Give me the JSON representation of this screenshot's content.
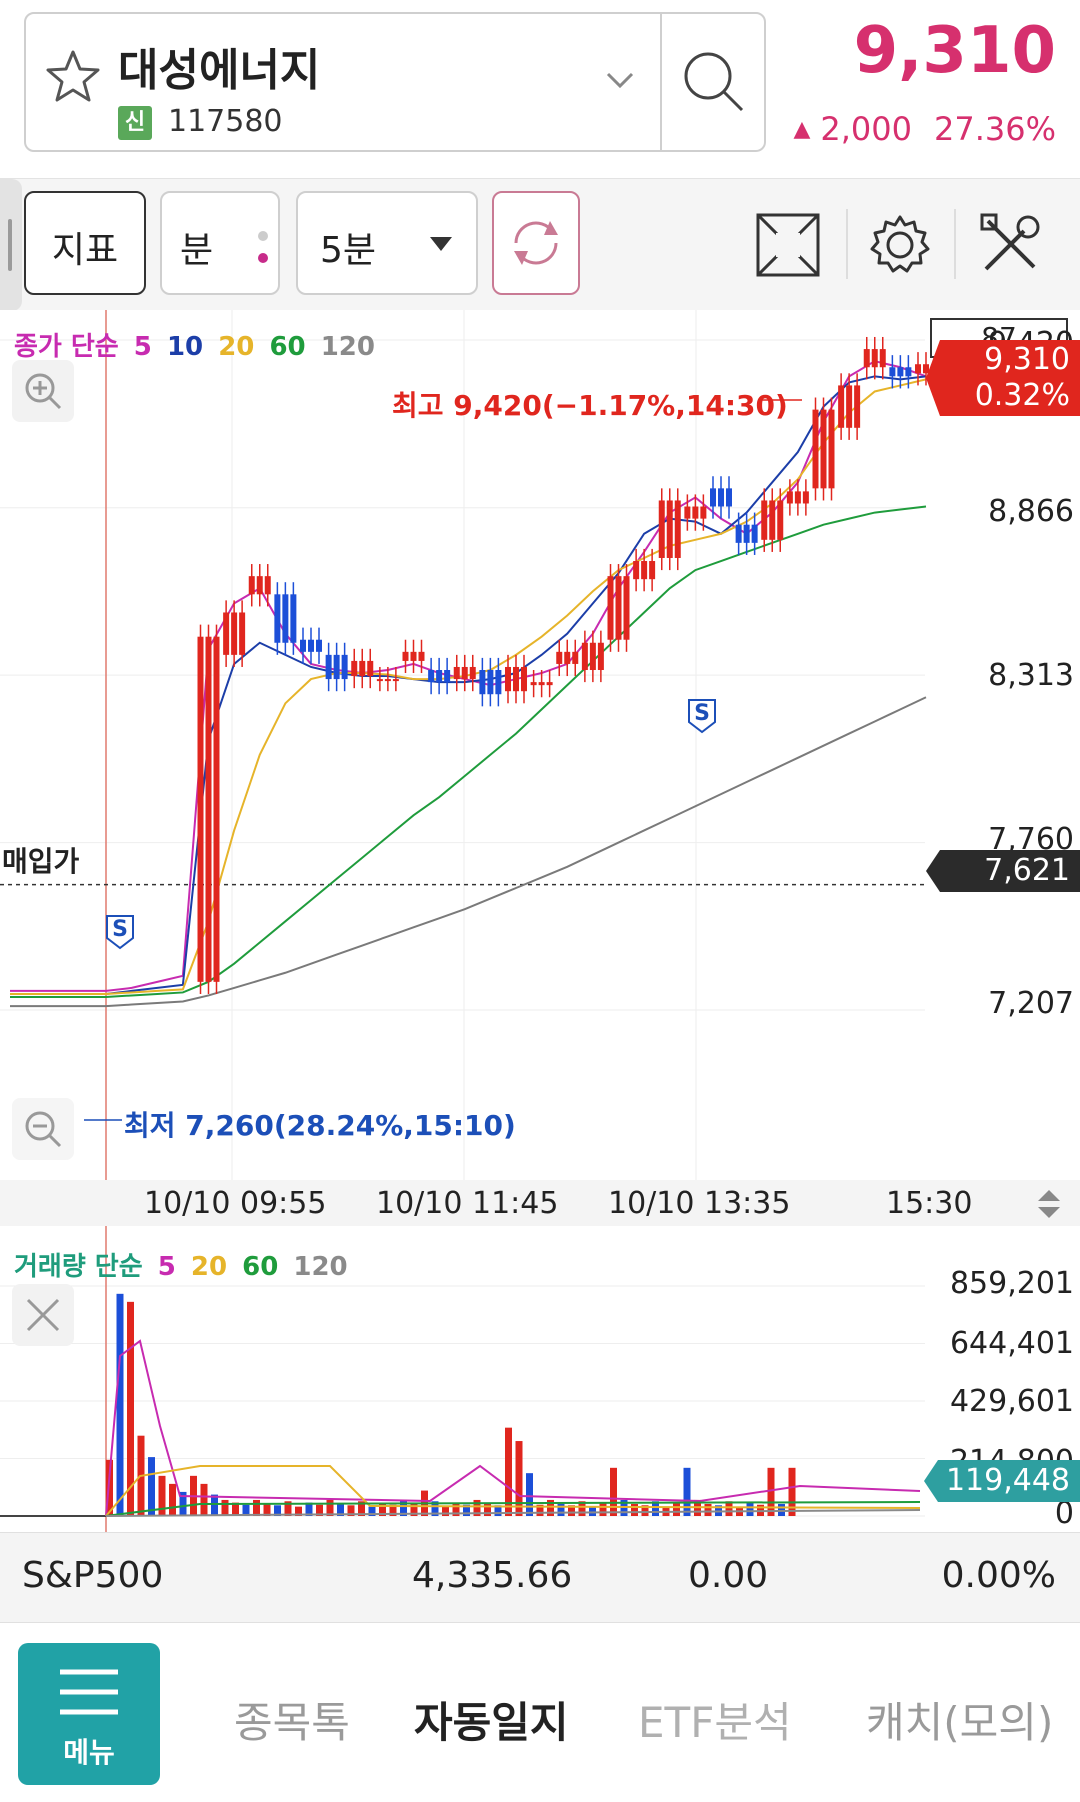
{
  "header": {
    "stock_name": "대성에너지",
    "badge": "신",
    "stock_code": "117580",
    "price": "9,310",
    "change_amount": "2,000",
    "change_percent": "27.36%",
    "price_color": "#d6306e"
  },
  "toolbar": {
    "indicator_label": "지표",
    "unit_label": "분",
    "interval_value": "5분",
    "icons": [
      "refresh-icon",
      "fullscreen-icon",
      "gear-icon",
      "tools-icon"
    ]
  },
  "chart": {
    "legend": {
      "title": "종가 단순",
      "periods": [
        "5",
        "10",
        "20",
        "60",
        "120"
      ],
      "colors": [
        "#c72bb0",
        "#1c3ea8",
        "#e6b42a",
        "#1f9c3c",
        "#7a7a7a"
      ]
    },
    "top_right_value": "87",
    "high_annotation": "최고 9,420(−1.17%,14:30)",
    "low_annotation": "최저 7,260(28.24%,15:10)",
    "purchase_label": "매입가",
    "purchase_price": "7,621",
    "current_tag_price": "9,310",
    "current_tag_percent": "0.32%",
    "y_labels": [
      "9,420",
      "8,866",
      "8,313",
      "7,760",
      "7,207"
    ],
    "time_labels": [
      "10/10 09:55",
      "10/10 11:45",
      "10/10 13:35",
      "15:30"
    ],
    "signal_label": "S"
  },
  "volume": {
    "legend": {
      "title": "거래량 단순",
      "periods": [
        "5",
        "20",
        "60",
        "120"
      ],
      "colors": [
        "#c72bb0",
        "#e6b42a",
        "#1f9c3c",
        "#7a7a7a"
      ]
    },
    "y_labels": [
      "859,201",
      "644,401",
      "429,601",
      "214,800",
      "0"
    ],
    "current_volume": "119,448"
  },
  "index_bar": {
    "name": "S&P500",
    "value": "4,335.66",
    "change": "0.00",
    "change_percent": "0.00%"
  },
  "bottom_nav": {
    "menu_label": "메뉴",
    "items": [
      "종목톡",
      "자동일지",
      "ETF분석",
      "캐치(모의)"
    ],
    "active_index": 1
  },
  "chart_data": {
    "type": "candlestick",
    "title": "",
    "y_ticks": [
      9420,
      8866,
      8313,
      7760,
      7207
    ],
    "ylim": [
      7207,
      9420
    ],
    "x_ticks": [
      "10/10 09:55",
      "10/10 11:45",
      "10/10 13:35",
      "15:30"
    ],
    "high": 9420,
    "low": 7260,
    "last": 9310,
    "purchase_price": 7621,
    "series": [
      {
        "name": "5",
        "values": [
          7270,
          7280,
          7300,
          7320,
          8400,
          8550,
          8600,
          8450,
          8350,
          8330,
          8320,
          8330,
          8350,
          8320,
          8300,
          8280,
          8300,
          8320,
          8350,
          8450,
          8600,
          8720,
          8850,
          8900,
          8830,
          8780,
          8850,
          8950,
          9150,
          9300,
          9350,
          9330,
          9300
        ]
      },
      {
        "name": "10",
        "values": [
          7260,
          7270,
          7280,
          7290,
          8100,
          8350,
          8420,
          8380,
          8340,
          8320,
          8310,
          8310,
          8300,
          8290,
          8290,
          8300,
          8320,
          8380,
          8450,
          8550,
          8650,
          8780,
          8830,
          8820,
          8780,
          8850,
          8950,
          9050,
          9200,
          9280,
          9300,
          9290,
          9300
        ]
      },
      {
        "name": "20",
        "values": [
          7260,
          7265,
          7270,
          7275,
          7500,
          7800,
          8050,
          8220,
          8300,
          8320,
          8320,
          8315,
          8300,
          8300,
          8310,
          8330,
          8380,
          8440,
          8510,
          8590,
          8660,
          8700,
          8740,
          8760,
          8780,
          8820,
          8880,
          8960,
          9080,
          9180,
          9250,
          9270,
          9290
        ]
      },
      {
        "name": "60",
        "values": [
          7250,
          7255,
          7260,
          7265,
          7300,
          7360,
          7430,
          7500,
          7570,
          7640,
          7710,
          7780,
          7850,
          7910,
          7980,
          8050,
          8120,
          8200,
          8280,
          8360,
          8440,
          8520,
          8600,
          8660,
          8690,
          8720,
          8750,
          8780,
          8810,
          8830,
          8850,
          8860,
          8870
        ]
      },
      {
        "name": "120",
        "values": [
          7220,
          7225,
          7230,
          7235,
          7255,
          7280,
          7305,
          7330,
          7360,
          7390,
          7420,
          7450,
          7480,
          7510,
          7540,
          7575,
          7610,
          7645,
          7680,
          7720,
          7760,
          7800,
          7840,
          7880,
          7920,
          7960,
          8000,
          8040,
          8080,
          8120,
          8160,
          8200,
          8240
        ]
      }
    ],
    "volume_ylim": [
      0,
      859201
    ],
    "volume_last": 119448
  }
}
